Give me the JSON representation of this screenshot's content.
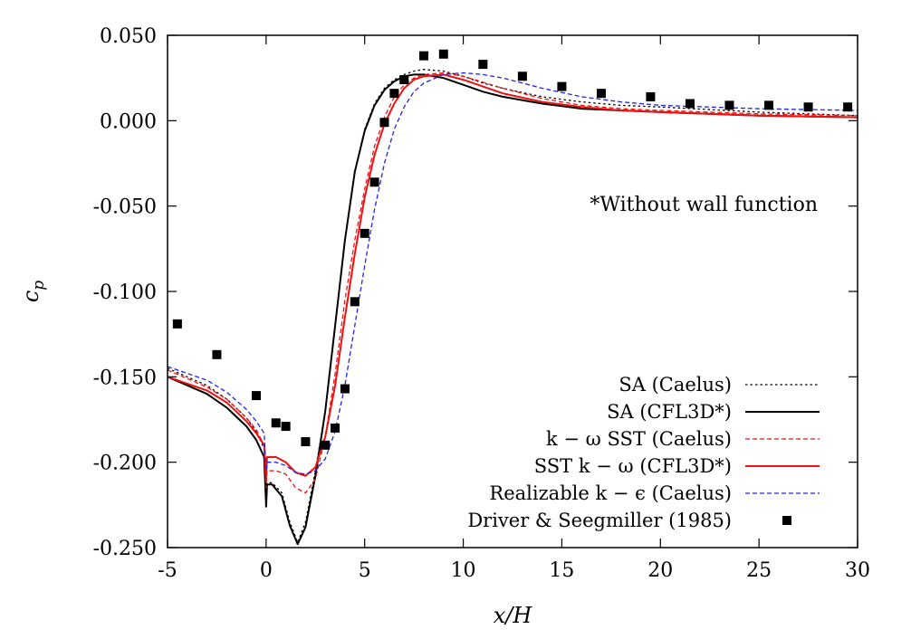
{
  "chart_data": {
    "type": "line",
    "xlabel": "x/H",
    "ylabel": "c_p",
    "xlim": [
      -5,
      30
    ],
    "ylim": [
      -0.25,
      0.05
    ],
    "xticks": [
      -5,
      0,
      5,
      10,
      15,
      20,
      25,
      30
    ],
    "xtick_labels": [
      "-5",
      "0",
      "5",
      "10",
      "15",
      "20",
      "25",
      "30"
    ],
    "yticks": [
      -0.25,
      -0.2,
      -0.15,
      -0.1,
      -0.05,
      0.0,
      0.05
    ],
    "ytick_labels": [
      "-0.250",
      "-0.200",
      "-0.150",
      "-0.100",
      "-0.050",
      "0.000",
      "0.050"
    ],
    "grid": false,
    "legend_position": "bottom-right",
    "annotation": "*Without wall function",
    "series": [
      {
        "name": "SA (Caelus)",
        "color": "#000000",
        "style": "dotted",
        "x": [
          -5,
          -3,
          -2,
          -1,
          -0.5,
          -0.1,
          0,
          0.05,
          0.3,
          0.8,
          1.2,
          1.6,
          2.0,
          2.5,
          3.0,
          3.5,
          4.0,
          4.5,
          5.0,
          5.5,
          6.0,
          6.5,
          7.0,
          7.5,
          8.0,
          9.0,
          10,
          11,
          12,
          14,
          16,
          18,
          20,
          25,
          30
        ],
        "y": [
          -0.145,
          -0.155,
          -0.163,
          -0.174,
          -0.182,
          -0.192,
          -0.223,
          -0.212,
          -0.212,
          -0.218,
          -0.235,
          -0.247,
          -0.235,
          -0.205,
          -0.17,
          -0.12,
          -0.07,
          -0.03,
          -0.005,
          0.01,
          0.019,
          0.024,
          0.027,
          0.029,
          0.03,
          0.029,
          0.026,
          0.022,
          0.019,
          0.014,
          0.011,
          0.009,
          0.008,
          0.005,
          0.003
        ]
      },
      {
        "name": "SA (CFL3D*)",
        "color": "#000000",
        "style": "solid",
        "x": [
          -5,
          -3,
          -2,
          -1,
          -0.5,
          -0.1,
          0,
          0.05,
          0.3,
          0.8,
          1.2,
          1.6,
          2.0,
          2.5,
          3.0,
          3.5,
          4.0,
          4.5,
          5.0,
          5.5,
          6.0,
          6.5,
          7.0,
          7.5,
          8.0,
          9.0,
          10,
          11,
          12,
          14,
          16,
          18,
          20,
          25,
          30
        ],
        "y": [
          -0.15,
          -0.16,
          -0.168,
          -0.179,
          -0.187,
          -0.197,
          -0.226,
          -0.213,
          -0.213,
          -0.22,
          -0.237,
          -0.248,
          -0.238,
          -0.208,
          -0.17,
          -0.12,
          -0.07,
          -0.03,
          -0.006,
          0.009,
          0.018,
          0.023,
          0.026,
          0.027,
          0.027,
          0.025,
          0.021,
          0.017,
          0.014,
          0.01,
          0.007,
          0.006,
          0.005,
          0.003,
          0.002
        ]
      },
      {
        "name": "k − ω SST (Caelus)",
        "color": "#ee1111",
        "style": "dashed",
        "x": [
          -5,
          -3,
          -2,
          -1,
          -0.5,
          -0.1,
          0,
          0.05,
          0.5,
          1.0,
          1.5,
          2.0,
          2.5,
          3.0,
          3.5,
          4.0,
          4.5,
          5.0,
          5.5,
          6.0,
          6.5,
          7.0,
          7.5,
          8.0,
          9.0,
          10,
          12,
          14,
          16,
          18,
          20,
          25,
          30
        ],
        "y": [
          -0.146,
          -0.156,
          -0.163,
          -0.174,
          -0.181,
          -0.19,
          -0.215,
          -0.205,
          -0.205,
          -0.207,
          -0.215,
          -0.218,
          -0.21,
          -0.185,
          -0.148,
          -0.105,
          -0.07,
          -0.04,
          -0.015,
          0.002,
          0.014,
          0.021,
          0.025,
          0.027,
          0.028,
          0.026,
          0.019,
          0.013,
          0.009,
          0.007,
          0.006,
          0.004,
          0.003
        ]
      },
      {
        "name": "SST k − ω (CFL3D*)",
        "color": "#ee1111",
        "style": "solid",
        "x": [
          -5,
          -3,
          -2,
          -1,
          -0.5,
          -0.1,
          0,
          0.05,
          0.5,
          1.0,
          1.5,
          2.0,
          2.5,
          3.0,
          3.5,
          4.0,
          4.5,
          5.0,
          5.5,
          6.0,
          6.5,
          7.0,
          7.5,
          8.0,
          9.0,
          10,
          12,
          14,
          16,
          18,
          20,
          25,
          30
        ],
        "y": [
          -0.15,
          -0.158,
          -0.165,
          -0.176,
          -0.183,
          -0.19,
          -0.21,
          -0.197,
          -0.197,
          -0.2,
          -0.206,
          -0.208,
          -0.203,
          -0.185,
          -0.155,
          -0.115,
          -0.078,
          -0.045,
          -0.02,
          -0.002,
          0.01,
          0.019,
          0.024,
          0.026,
          0.027,
          0.024,
          0.016,
          0.011,
          0.008,
          0.006,
          0.005,
          0.003,
          0.002
        ]
      },
      {
        "name": "Realizable k − ϵ (Caelus)",
        "color": "#2222ee",
        "style": "dashed",
        "x": [
          -5,
          -3,
          -2,
          -1,
          -0.5,
          -0.1,
          0,
          0.05,
          0.5,
          1.0,
          1.5,
          2.0,
          2.5,
          3.0,
          3.5,
          4.0,
          4.5,
          5.0,
          5.5,
          6.0,
          6.5,
          7.0,
          7.5,
          8.0,
          9.0,
          10,
          11,
          12,
          14,
          16,
          18,
          20,
          25,
          30
        ],
        "y": [
          -0.144,
          -0.152,
          -0.159,
          -0.169,
          -0.176,
          -0.183,
          -0.205,
          -0.2,
          -0.2,
          -0.202,
          -0.206,
          -0.207,
          -0.205,
          -0.198,
          -0.182,
          -0.155,
          -0.12,
          -0.085,
          -0.052,
          -0.025,
          -0.005,
          0.008,
          0.017,
          0.022,
          0.027,
          0.028,
          0.027,
          0.025,
          0.019,
          0.014,
          0.011,
          0.009,
          0.007,
          0.006
        ]
      }
    ],
    "scatter": {
      "name": "Driver & Seegmiller (1985)",
      "color": "#000000",
      "marker": "square",
      "x": [
        -4.5,
        -2.5,
        -0.5,
        0.5,
        1.0,
        2.0,
        3.0,
        3.5,
        4.0,
        4.5,
        5.0,
        5.5,
        6.0,
        6.5,
        7.0,
        8.0,
        9.0,
        11.0,
        13.0,
        15.0,
        17.0,
        19.5,
        21.5,
        23.5,
        25.5,
        27.5,
        29.5
      ],
      "y": [
        -0.119,
        -0.137,
        -0.161,
        -0.177,
        -0.179,
        -0.188,
        -0.19,
        -0.18,
        -0.157,
        -0.106,
        -0.066,
        -0.036,
        -0.001,
        0.016,
        0.024,
        0.038,
        0.039,
        0.033,
        0.026,
        0.02,
        0.016,
        0.014,
        0.01,
        0.009,
        0.009,
        0.008,
        0.008
      ]
    }
  }
}
